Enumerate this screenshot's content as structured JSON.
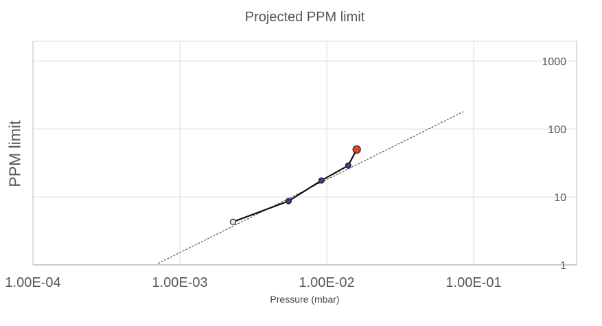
{
  "chart_data": {
    "type": "line",
    "title": "Projected PPM limit",
    "xlabel": "Pressure (mbar)",
    "ylabel": "PPM limit",
    "x_scale": "log",
    "y_scale": "log",
    "xlim": [
      0.0001,
      0.3
    ],
    "ylim": [
      1,
      2000
    ],
    "x_ticks": [
      0.0001,
      0.001,
      0.01,
      0.1
    ],
    "x_tick_labels": [
      "1.00E-04",
      "1.00E-03",
      "1.00E-02",
      "1.00E-01"
    ],
    "y_ticks": [
      1,
      10,
      100,
      1000
    ],
    "y_tick_labels": [
      "1",
      "10",
      "100",
      "1000"
    ],
    "y_axis_position": "right",
    "grid": true,
    "series": [
      {
        "style": "solid-line-with-markers",
        "x": [
          0.0023,
          0.0055,
          0.0092,
          0.014,
          0.016
        ],
        "y": [
          4.3,
          8.7,
          17.5,
          29,
          50
        ],
        "marker_colors": [
          "#dff0e0",
          "#3b3d8f",
          "#3b3d8f",
          "#3b3d8f",
          "#e8431f"
        ]
      },
      {
        "style": "dashed-trendline",
        "x": [
          0.00071,
          0.085
        ],
        "y": [
          1.05,
          180
        ]
      }
    ]
  }
}
